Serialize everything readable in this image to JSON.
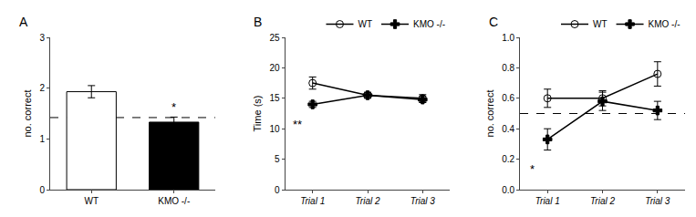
{
  "chart_data": [
    {
      "type": "bar",
      "title": "A",
      "categories": [
        "WT",
        "KMO -/-"
      ],
      "values": [
        1.93,
        1.33
      ],
      "errors": [
        0.12,
        0.1
      ],
      "colors": [
        "white",
        "black"
      ],
      "ylabel": "no. correct",
      "ylim": [
        0,
        3
      ],
      "yticks": [
        0,
        1,
        2,
        3
      ],
      "grid": false,
      "dashed_line": 1.42,
      "annotations": [
        {
          "text": "*",
          "x": "KMO -/-",
          "y": 1.46
        }
      ]
    },
    {
      "type": "line",
      "title": "B",
      "x": [
        1,
        2,
        3
      ],
      "xlim": [
        0.5,
        3.5
      ],
      "xticks": [
        {
          "value": 1,
          "label": "Trial 1"
        },
        {
          "value": 2,
          "label": "Trial 2"
        },
        {
          "value": 3,
          "label": "Trial 3"
        }
      ],
      "ylabel": "Time (s)",
      "ylim": [
        0,
        25
      ],
      "yticks": [
        0,
        5,
        10,
        15,
        20,
        25
      ],
      "grid": false,
      "legend": "upper right",
      "series": [
        {
          "name": "WT",
          "color": "black",
          "marker": "circle-open",
          "values": [
            17.5,
            15.5,
            15.0
          ],
          "errors": [
            1.0,
            0.5,
            0.6
          ]
        },
        {
          "name": "KMO -/-",
          "color": "black",
          "marker": "cross",
          "values": [
            14.0,
            15.5,
            14.8
          ],
          "errors": [
            0.5,
            0.4,
            0.5
          ]
        }
      ],
      "annotations": [
        {
          "text": "**",
          "x": 0.72,
          "y": 12.2
        }
      ]
    },
    {
      "type": "line",
      "title": "C",
      "x": [
        1,
        2,
        3
      ],
      "xlim": [
        0.5,
        3.5
      ],
      "xticks": [
        {
          "value": 1,
          "label": "Trial 1"
        },
        {
          "value": 2,
          "label": "Trial 2"
        },
        {
          "value": 3,
          "label": "Trial 3"
        }
      ],
      "ylabel": "no. correct",
      "ylim": [
        0.0,
        1.0
      ],
      "yticks": [
        {
          "value": 0,
          "label": "0.0"
        },
        0.2,
        0.4,
        0.6,
        0.8,
        {
          "value": 1,
          "label": "1.0"
        }
      ],
      "grid": false,
      "legend": "upper right",
      "dashed_line": 0.5,
      "series": [
        {
          "name": "WT",
          "color": "black",
          "marker": "circle-open",
          "values": [
            0.6,
            0.6,
            0.76
          ],
          "errors": [
            0.06,
            0.05,
            0.08
          ]
        },
        {
          "name": "KMO -/-",
          "color": "black",
          "marker": "cross",
          "values": [
            0.33,
            0.58,
            0.52
          ],
          "errors": [
            0.07,
            0.06,
            0.06
          ]
        }
      ],
      "annotations": [
        {
          "text": "*",
          "x": 0.72,
          "y": 0.19
        }
      ]
    }
  ]
}
